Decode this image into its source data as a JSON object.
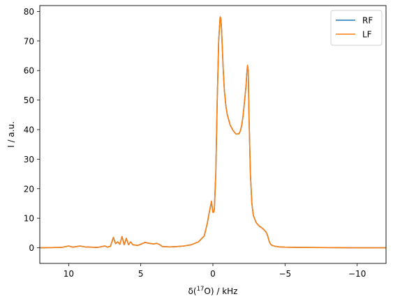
{
  "chart_data": {
    "type": "line",
    "title": "",
    "xlabel_prefix": "δ(",
    "xlabel_sup": "17",
    "xlabel_suffix": "O) / kHz",
    "ylabel": "I / a.u.",
    "xlim": [
      12,
      -12
    ],
    "ylim": [
      -5.3,
      82
    ],
    "x_ticks": [
      10,
      5,
      0,
      -5,
      -10
    ],
    "x_tick_labels": [
      "10",
      "5",
      "0",
      "−5",
      "−10"
    ],
    "y_ticks": [
      0,
      10,
      20,
      30,
      40,
      50,
      60,
      70,
      80
    ],
    "y_tick_labels": [
      "0",
      "10",
      "20",
      "30",
      "40",
      "50",
      "60",
      "70",
      "80"
    ],
    "grid": false,
    "legend_position": "top-right",
    "x": [
      12.0,
      10.5,
      10.0,
      9.7,
      9.2,
      8.9,
      8.0,
      7.5,
      7.3,
      7.1,
      6.9,
      6.75,
      6.6,
      6.45,
      6.3,
      6.15,
      6.0,
      5.85,
      5.7,
      5.55,
      5.4,
      5.2,
      5.0,
      4.7,
      4.4,
      4.1,
      3.9,
      3.7,
      3.5,
      3.0,
      2.5,
      2.0,
      1.5,
      1.0,
      0.6,
      0.4,
      0.25,
      0.1,
      0.0,
      -0.05,
      -0.1,
      -0.2,
      -0.3,
      -0.4,
      -0.5,
      -0.55,
      -0.6,
      -0.65,
      -0.7,
      -0.75,
      -0.8,
      -0.9,
      -1.0,
      -1.2,
      -1.4,
      -1.6,
      -1.8,
      -1.9,
      -2.0,
      -2.1,
      -2.2,
      -2.3,
      -2.35,
      -2.4,
      -2.45,
      -2.5,
      -2.6,
      -2.7,
      -2.8,
      -3.0,
      -3.2,
      -3.4,
      -3.6,
      -3.7,
      -3.8,
      -3.9,
      -4.0,
      -4.1,
      -4.3,
      -4.6,
      -5.0,
      -6.0,
      -8.0,
      -10.0,
      -12.0
    ],
    "series": [
      {
        "name": "RF",
        "color": "#1f77b4",
        "values": [
          0.0,
          0.1,
          0.6,
          0.2,
          0.6,
          0.3,
          0.1,
          0.6,
          0.2,
          0.5,
          3.5,
          1.4,
          2.0,
          1.2,
          3.8,
          1.0,
          3.2,
          1.0,
          2.0,
          1.0,
          0.9,
          0.8,
          1.2,
          1.8,
          1.5,
          1.3,
          1.5,
          1.1,
          0.4,
          0.3,
          0.4,
          0.6,
          1.0,
          2.0,
          4.0,
          8.0,
          12.0,
          15.5,
          12.0,
          12.0,
          13.0,
          25.0,
          50.0,
          70.0,
          78.0,
          77.5,
          74.0,
          68.0,
          62.0,
          57.0,
          53.0,
          48.0,
          45.0,
          41.5,
          39.7,
          38.5,
          38.6,
          39.5,
          41.5,
          45.0,
          50.0,
          55.0,
          59.0,
          61.5,
          60.0,
          45.0,
          25.0,
          15.0,
          11.0,
          8.5,
          7.4,
          6.7,
          5.8,
          5.2,
          4.0,
          2.2,
          1.2,
          0.8,
          0.5,
          0.3,
          0.2,
          0.1,
          0.05,
          0.0,
          0.0
        ]
      },
      {
        "name": "LF",
        "color": "#ff7f0e",
        "values": [
          0.0,
          0.1,
          0.6,
          0.2,
          0.6,
          0.3,
          0.1,
          0.6,
          0.2,
          0.5,
          3.5,
          1.4,
          2.0,
          1.2,
          3.8,
          1.0,
          3.2,
          1.0,
          2.0,
          1.0,
          0.9,
          0.8,
          1.2,
          1.8,
          1.5,
          1.3,
          1.5,
          1.1,
          0.4,
          0.3,
          0.4,
          0.6,
          1.0,
          2.0,
          4.0,
          8.0,
          12.0,
          15.8,
          12.0,
          12.0,
          13.0,
          25.0,
          50.0,
          70.0,
          78.2,
          77.7,
          74.0,
          68.0,
          62.0,
          57.0,
          53.0,
          48.0,
          45.0,
          41.5,
          39.7,
          38.5,
          38.6,
          39.5,
          41.5,
          45.0,
          50.0,
          55.0,
          59.0,
          61.8,
          60.2,
          45.0,
          25.0,
          15.0,
          11.0,
          8.5,
          7.4,
          6.7,
          5.8,
          5.2,
          4.0,
          2.2,
          1.2,
          0.8,
          0.5,
          0.3,
          0.2,
          0.1,
          0.05,
          0.0,
          0.0
        ]
      }
    ]
  }
}
